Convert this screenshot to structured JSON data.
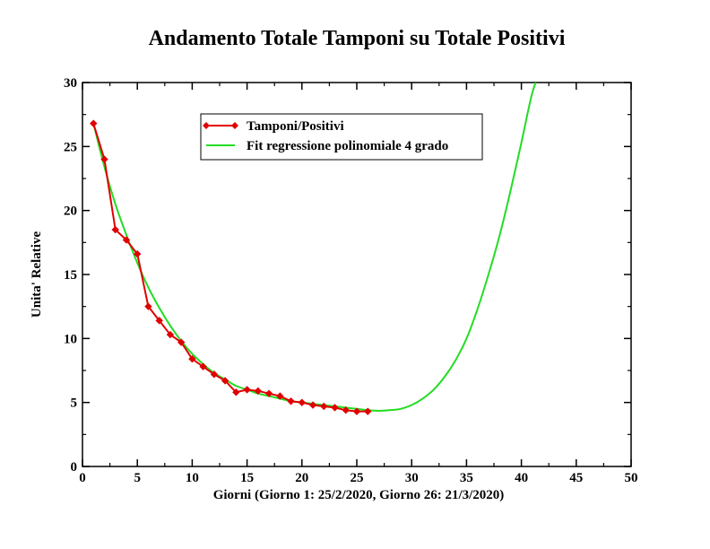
{
  "chart_data": {
    "type": "line",
    "title": "Andamento Totale Tamponi su Totale Positivi",
    "xlabel": "Giorni   (Giorno 1: 25/2/2020, Giorno 26: 21/3/2020)",
    "ylabel": "Unita' Relative",
    "xlim": [
      0,
      50
    ],
    "ylim": [
      0,
      30
    ],
    "xticks": [
      0,
      5,
      10,
      15,
      20,
      25,
      30,
      35,
      40,
      45,
      50
    ],
    "yticks": [
      0,
      5,
      10,
      15,
      20,
      25,
      30
    ],
    "grid": false,
    "legend_position": "top-center",
    "series": [
      {
        "name": "Tamponi/Positivi",
        "color": "#e00000",
        "marker": "diamond",
        "x": [
          1,
          2,
          3,
          4,
          5,
          6,
          7,
          8,
          9,
          10,
          11,
          12,
          13,
          14,
          15,
          16,
          17,
          18,
          19,
          20,
          21,
          22,
          23,
          24,
          25,
          26
        ],
        "y": [
          26.8,
          24.0,
          18.5,
          17.7,
          16.6,
          12.5,
          11.4,
          10.3,
          9.7,
          8.4,
          7.8,
          7.2,
          6.7,
          5.8,
          6.0,
          5.9,
          5.7,
          5.5,
          5.1,
          5.0,
          4.8,
          4.7,
          4.6,
          4.4,
          4.3,
          4.3
        ]
      },
      {
        "name": "Fit regressione polinomiale 4 grado",
        "color": "#22dd22",
        "marker": "none",
        "x": [
          1,
          2,
          3,
          4,
          5,
          6,
          7,
          8,
          9,
          10,
          11,
          12,
          13,
          14,
          15,
          16,
          17,
          18,
          19,
          20,
          21,
          22,
          23,
          24,
          25,
          26,
          27,
          28,
          29,
          30,
          31,
          32,
          33,
          34,
          35,
          36,
          37,
          38,
          39,
          40,
          41,
          42
        ],
        "y": [
          26.8,
          23.4,
          20.5,
          18.1,
          15.9,
          14.0,
          12.4,
          11.0,
          9.8,
          8.8,
          8.0,
          7.3,
          6.8,
          6.3,
          6.0,
          5.7,
          5.5,
          5.3,
          5.1,
          5.0,
          4.9,
          4.8,
          4.7,
          4.6,
          4.5,
          4.4,
          4.35,
          4.4,
          4.5,
          4.8,
          5.3,
          6.0,
          7.0,
          8.3,
          10.0,
          12.3,
          15.0,
          18.0,
          21.5,
          25.3,
          29.2,
          31.6
        ]
      }
    ]
  }
}
